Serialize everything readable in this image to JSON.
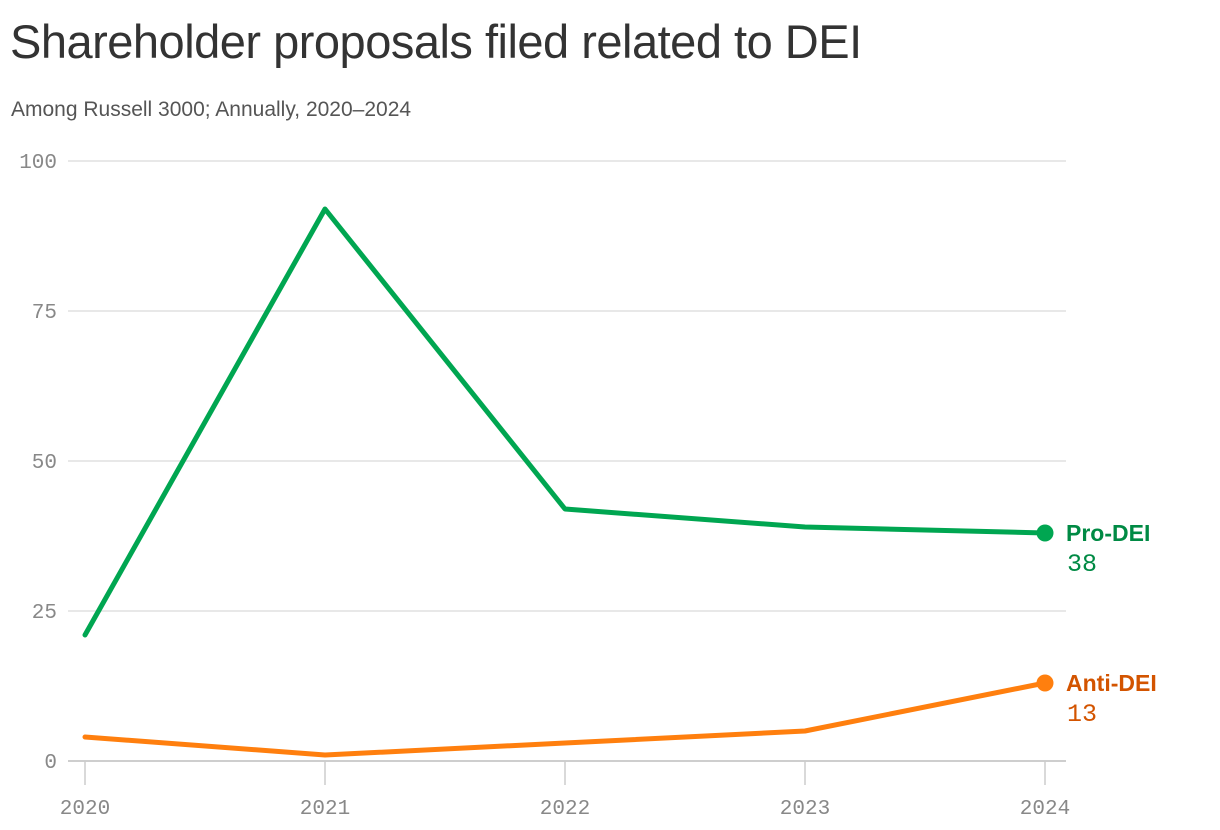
{
  "title": "Shareholder proposals filed related to DEI",
  "subtitle": "Among Russell 3000; Annually, 2020–2024",
  "chart_data": {
    "type": "line",
    "x": [
      2020,
      2021,
      2022,
      2023,
      2024
    ],
    "x_tick_labels": [
      "2020",
      "2021",
      "2022",
      "2023",
      "2024"
    ],
    "ylim": [
      0,
      100
    ],
    "y_ticks": [
      0,
      25,
      50,
      75,
      100
    ],
    "y_tick_labels": [
      "0",
      "25",
      "50",
      "75",
      "100"
    ],
    "grid": true,
    "legend": "direct labels at line ends",
    "series": [
      {
        "name": "Pro-DEI",
        "values": [
          21,
          92,
          42,
          39,
          38
        ],
        "end_label": "38",
        "color": "#00a651",
        "label_color": "#008a44"
      },
      {
        "name": "Anti-DEI",
        "values": [
          4,
          1,
          3,
          5,
          13
        ],
        "end_label": "13",
        "color": "#ff7f0e",
        "label_color": "#d35400"
      }
    ]
  }
}
